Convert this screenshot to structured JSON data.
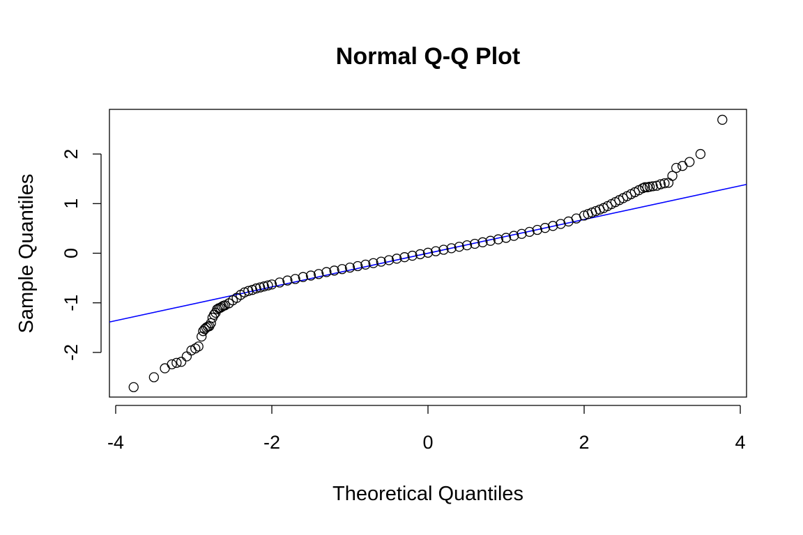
{
  "chart_data": {
    "type": "scatter",
    "title": "Normal Q-Q Plot",
    "xlabel": "Theoretical Quantiles",
    "ylabel": "Sample Quantiles",
    "xlim": [
      -4.08,
      4.08
    ],
    "ylim": [
      -2.9,
      2.9
    ],
    "xticks": [
      -4,
      -2,
      0,
      2,
      4
    ],
    "yticks": [
      -2,
      -1,
      0,
      1,
      2
    ],
    "xtick_labels": [
      "-4",
      "-2",
      "0",
      "2",
      "4"
    ],
    "ytick_labels": [
      "-2",
      "-1",
      "0",
      "1",
      "2"
    ],
    "reference_line": {
      "intercept": 0.0,
      "slope": 0.34,
      "color": "#0000ff"
    },
    "point_color": "#000000",
    "series": [
      {
        "x": [
          -3.77,
          -3.51,
          -3.37,
          -3.28,
          -3.22,
          -3.16,
          -3.09,
          -3.03,
          -2.98,
          -2.94,
          -2.9,
          -2.88,
          -2.86,
          -2.84,
          -2.82,
          -2.8,
          -2.78,
          -2.76,
          -2.74,
          -2.72,
          -2.7,
          -2.68,
          -2.66,
          -2.64,
          -2.62,
          -2.6,
          -2.55,
          -2.5,
          -2.45,
          -2.4,
          -2.35,
          -2.3,
          -2.25,
          -2.2,
          -2.15,
          -2.1,
          -2.05,
          -2.0,
          -1.9,
          -1.8,
          -1.7,
          -1.6,
          -1.5,
          -1.4,
          -1.3,
          -1.2,
          -1.1,
          -1.0,
          -0.9,
          -0.8,
          -0.7,
          -0.6,
          -0.5,
          -0.4,
          -0.3,
          -0.2,
          -0.1,
          0.0,
          0.1,
          0.2,
          0.3,
          0.4,
          0.5,
          0.6,
          0.7,
          0.8,
          0.9,
          1.0,
          1.1,
          1.2,
          1.3,
          1.4,
          1.5,
          1.6,
          1.7,
          1.8,
          1.9,
          2.0,
          2.05,
          2.1,
          2.15,
          2.2,
          2.25,
          2.3,
          2.35,
          2.4,
          2.45,
          2.5,
          2.55,
          2.6,
          2.65,
          2.7,
          2.75,
          2.78,
          2.81,
          2.84,
          2.88,
          2.93,
          2.98,
          3.03,
          3.08,
          3.13,
          3.18,
          3.26,
          3.35,
          3.49,
          3.77
        ],
        "y": [
          -2.7,
          -2.5,
          -2.32,
          -2.24,
          -2.21,
          -2.19,
          -2.08,
          -1.96,
          -1.92,
          -1.88,
          -1.68,
          -1.57,
          -1.53,
          -1.5,
          -1.48,
          -1.47,
          -1.41,
          -1.3,
          -1.24,
          -1.2,
          -1.13,
          -1.11,
          -1.1,
          -1.08,
          -1.06,
          -1.05,
          -1.01,
          -0.95,
          -0.9,
          -0.84,
          -0.79,
          -0.76,
          -0.74,
          -0.71,
          -0.69,
          -0.67,
          -0.65,
          -0.63,
          -0.59,
          -0.55,
          -0.52,
          -0.48,
          -0.45,
          -0.42,
          -0.38,
          -0.35,
          -0.32,
          -0.29,
          -0.26,
          -0.23,
          -0.2,
          -0.17,
          -0.14,
          -0.11,
          -0.08,
          -0.05,
          -0.02,
          0.01,
          0.04,
          0.07,
          0.1,
          0.13,
          0.16,
          0.19,
          0.22,
          0.25,
          0.28,
          0.31,
          0.35,
          0.39,
          0.43,
          0.47,
          0.51,
          0.55,
          0.59,
          0.64,
          0.7,
          0.76,
          0.79,
          0.82,
          0.85,
          0.88,
          0.91,
          0.95,
          0.99,
          1.03,
          1.07,
          1.11,
          1.15,
          1.19,
          1.23,
          1.27,
          1.31,
          1.33,
          1.33,
          1.34,
          1.35,
          1.36,
          1.39,
          1.41,
          1.42,
          1.56,
          1.72,
          1.76,
          1.84,
          2.0,
          2.69
        ]
      }
    ]
  }
}
